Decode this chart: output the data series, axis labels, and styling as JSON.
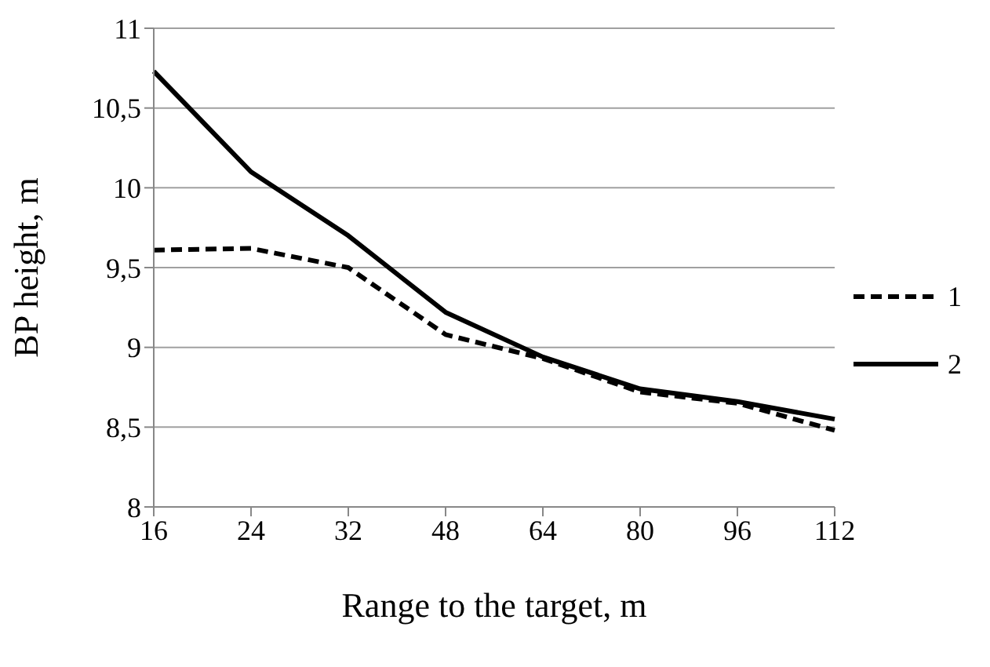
{
  "chart_data": {
    "type": "line",
    "xlabel": "Range to the target, m",
    "ylabel": "BP height, m",
    "categories": [
      "16",
      "24",
      "32",
      "48",
      "64",
      "80",
      "96",
      "112"
    ],
    "series": [
      {
        "name": "1",
        "color": "#000000",
        "line_style": "dashed",
        "values": [
          9.61,
          9.62,
          9.5,
          9.08,
          8.93,
          8.72,
          8.65,
          8.48
        ]
      },
      {
        "name": "2",
        "color": "#000000",
        "line_style": "solid",
        "values": [
          10.73,
          10.1,
          9.7,
          9.22,
          8.94,
          8.74,
          8.66,
          8.55
        ]
      }
    ],
    "ylim": [
      8,
      11
    ],
    "yticks": [
      8,
      {
        "value": 8.5,
        "label": "8,5"
      },
      9,
      {
        "value": 9.5,
        "label": "9,5"
      },
      10,
      {
        "value": 10.5,
        "label": "10,5"
      },
      11
    ],
    "grid": "y",
    "legend": "right",
    "marker": "none"
  }
}
